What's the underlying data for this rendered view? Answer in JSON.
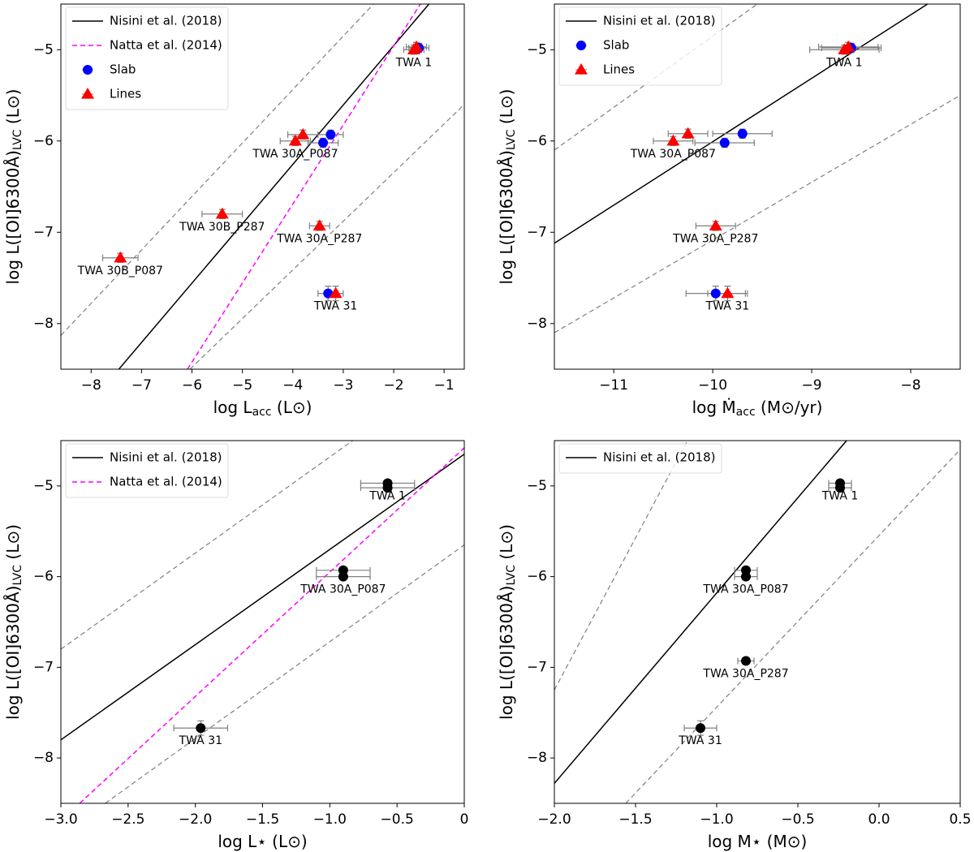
{
  "chart_data": [
    {
      "type": "scatter",
      "legend": "upper left",
      "x_label": [
        "log L",
        "acc",
        " (L⊙)"
      ],
      "y_label": [
        "log L([OI]6300Å)",
        "LVC",
        " (L⊙)"
      ],
      "xlim": [
        -8.6,
        -0.6
      ],
      "ylim": [
        -8.5,
        -4.5
      ],
      "xticks": [
        {
          "value": -8,
          "label": "−8"
        },
        {
          "value": -7,
          "label": "−7"
        },
        {
          "value": -6,
          "label": "−6"
        },
        {
          "value": -5,
          "label": "−5"
        },
        {
          "value": -4,
          "label": "−4"
        },
        {
          "value": -3,
          "label": "−3"
        },
        {
          "value": -2,
          "label": "−2"
        },
        {
          "value": -1,
          "label": "−1"
        }
      ],
      "yticks": [
        {
          "value": -8,
          "label": "−8"
        },
        {
          "value": -7,
          "label": "−7"
        },
        {
          "value": -6,
          "label": "−6"
        },
        {
          "value": -5,
          "label": "−5"
        }
      ],
      "lines": [
        {
          "name": "Nisini et al. (2018)",
          "color": "#000000",
          "dashed": false,
          "x": [
            -7.45,
            -1.3
          ],
          "y": [
            -8.5,
            -4.5
          ]
        },
        {
          "name": "Natta et al. (2014)",
          "color": "#ff00ff",
          "dashed": true,
          "x": [
            -6.09,
            -1.47
          ],
          "y": [
            -8.5,
            -4.5
          ]
        },
        {
          "color": "#808080",
          "dashed": true,
          "x": [
            -8.6,
            -2.4
          ],
          "y": [
            -8.13,
            -4.5
          ]
        },
        {
          "color": "#808080",
          "dashed": true,
          "x": [
            -6.04,
            -0.6
          ],
          "y": [
            -8.5,
            -5.6
          ]
        }
      ],
      "series": [
        {
          "name": "Slab",
          "color": "#0000ff",
          "marker": "circle",
          "x": [
            -1.5,
            -3.25,
            -3.4,
            -3.3
          ],
          "values": [
            -4.98,
            -5.93,
            -6.02,
            -7.67
          ],
          "xerr": [
            0.2,
            0.25,
            0.3,
            0.2
          ],
          "yerr": [
            0.05,
            0.05,
            0.05,
            0.08
          ],
          "labels": [
            null,
            null,
            null,
            null
          ]
        },
        {
          "name": "Lines",
          "color": "#ff0000",
          "marker": "triangle",
          "x": [
            -1.6,
            -1.55,
            -3.8,
            -3.95,
            -5.4,
            -3.47,
            -7.42,
            -3.15
          ],
          "values": [
            -5.0,
            -4.97,
            -5.93,
            -6.0,
            -6.8,
            -6.93,
            -7.28,
            -7.67
          ],
          "xerr": [
            0.2,
            0.2,
            0.3,
            0.3,
            0.4,
            0.2,
            0.35,
            0.15
          ],
          "yerr": [
            0.05,
            0.05,
            0.05,
            0.05,
            0.05,
            0.05,
            0.05,
            0.08
          ],
          "labels": [
            "TWA 1",
            null,
            null,
            "TWA 30A_P087",
            "TWA 30B_P287",
            "TWA 30A_P287",
            "TWA 30B_P087",
            "TWA 31"
          ]
        }
      ]
    },
    {
      "type": "scatter",
      "legend": "upper left",
      "x_label": [
        "log Ṁ",
        "acc",
        " (M⊙/yr)"
      ],
      "y_label": [
        "log L([OI]6300Å)",
        "LVC",
        " (L⊙)"
      ],
      "xlim": [
        -11.6,
        -7.5
      ],
      "ylim": [
        -8.5,
        -4.5
      ],
      "xticks": [
        {
          "value": -11,
          "label": "−11"
        },
        {
          "value": -10,
          "label": "−10"
        },
        {
          "value": -9,
          "label": "−9"
        },
        {
          "value": -8,
          "label": "−8"
        }
      ],
      "yticks": [
        {
          "value": -8,
          "label": "−8"
        },
        {
          "value": -7,
          "label": "−7"
        },
        {
          "value": -6,
          "label": "−6"
        },
        {
          "value": -5,
          "label": "−5"
        }
      ],
      "lines": [
        {
          "name": "Nisini et al. (2018)",
          "color": "#000000",
          "dashed": false,
          "x": [
            -11.6,
            -7.83
          ],
          "y": [
            -7.12,
            -4.5
          ]
        },
        {
          "color": "#808080",
          "dashed": true,
          "x": [
            -11.6,
            -9.55
          ],
          "y": [
            -6.1,
            -4.5
          ]
        },
        {
          "color": "#808080",
          "dashed": true,
          "x": [
            -11.6,
            -7.5
          ],
          "y": [
            -8.1,
            -5.5
          ]
        }
      ],
      "series": [
        {
          "name": "Slab",
          "color": "#0000ff",
          "marker": "circle",
          "x": [
            -8.6,
            -9.7,
            -9.88,
            -9.97
          ],
          "values": [
            -4.98,
            -5.92,
            -6.02,
            -7.67
          ],
          "xerr": [
            0.3,
            0.3,
            0.3,
            0.3
          ],
          "yerr": [
            0.05,
            0.05,
            0.05,
            0.08
          ],
          "labels": [
            null,
            null,
            null,
            null
          ]
        },
        {
          "name": "Lines",
          "color": "#ff0000",
          "marker": "triangle",
          "x": [
            -8.67,
            -8.63,
            -10.25,
            -10.4,
            -9.97,
            -9.85
          ],
          "values": [
            -5.0,
            -4.97,
            -5.92,
            -6.0,
            -6.93,
            -7.67
          ],
          "xerr": [
            0.35,
            0.3,
            0.2,
            0.2,
            0.2,
            0.2
          ],
          "yerr": [
            0.05,
            0.05,
            0.05,
            0.05,
            0.05,
            0.08
          ],
          "labels": [
            "TWA 1",
            null,
            null,
            "TWA 30A_P087",
            "TWA 30A_P287",
            "TWA 31"
          ]
        }
      ]
    },
    {
      "type": "scatter",
      "legend": "upper left",
      "x_label": [
        "log L⋆ (L⊙)"
      ],
      "y_label": [
        "log L([OI]6300Å)",
        "LVC",
        " (L⊙)"
      ],
      "xlim": [
        -3,
        0
      ],
      "ylim": [
        -8.5,
        -4.5
      ],
      "xticks": [
        {
          "value": -3,
          "label": "−3.0"
        },
        {
          "value": -2.5,
          "label": "−2.5"
        },
        {
          "value": -2,
          "label": "−2.0"
        },
        {
          "value": -1.5,
          "label": "−1.5"
        },
        {
          "value": -1,
          "label": "−1.0"
        },
        {
          "value": -0.5,
          "label": "−0.5"
        },
        0
      ],
      "yticks": [
        {
          "value": -8,
          "label": "−8"
        },
        {
          "value": -7,
          "label": "−7"
        },
        {
          "value": -6,
          "label": "−6"
        },
        {
          "value": -5,
          "label": "−5"
        }
      ],
      "lines": [
        {
          "name": "Nisini et al. (2018)",
          "color": "#000000",
          "dashed": false,
          "x": [
            -3,
            0
          ],
          "y": [
            -7.8,
            -4.65
          ]
        },
        {
          "name": "Natta et al. (2014)",
          "color": "#ff00ff",
          "dashed": true,
          "x": [
            -2.86,
            0
          ],
          "y": [
            -8.5,
            -4.58
          ]
        },
        {
          "color": "#808080",
          "dashed": true,
          "x": [
            -3,
            -0.83
          ],
          "y": [
            -6.8,
            -4.5
          ]
        },
        {
          "color": "#808080",
          "dashed": true,
          "x": [
            -2.67,
            0
          ],
          "y": [
            -8.5,
            -5.65
          ]
        }
      ],
      "series": [
        {
          "color": "#000000",
          "marker": "circle",
          "x": [
            -0.57,
            -0.57,
            -0.9,
            -0.9,
            -1.96
          ],
          "values": [
            -4.97,
            -5.02,
            -5.93,
            -6.0,
            -7.67
          ],
          "xerr": [
            0.2,
            0.2,
            0.2,
            0.2,
            0.2
          ],
          "yerr": [
            0,
            0,
            0,
            0,
            0.08
          ],
          "labels": [
            "TWA 1",
            null,
            null,
            "TWA 30A_P087",
            "TWA 31"
          ]
        }
      ]
    },
    {
      "type": "scatter",
      "legend": "upper left",
      "x_label": [
        "log M⋆ (M⊙)"
      ],
      "y_label": [
        "log L([OI]6300Å)",
        "LVC",
        " (L⊙)"
      ],
      "xlim": [
        -2,
        0.5
      ],
      "ylim": [
        -8.5,
        -4.5
      ],
      "xticks": [
        {
          "value": -2,
          "label": "−2.0"
        },
        {
          "value": -1.5,
          "label": "−1.5"
        },
        {
          "value": -1,
          "label": "−1.0"
        },
        {
          "value": -0.5,
          "label": "−0.5"
        },
        {
          "value": 0,
          "label": "0.0"
        },
        0.5
      ],
      "yticks": [
        {
          "value": -8,
          "label": "−8"
        },
        {
          "value": -7,
          "label": "−7"
        },
        {
          "value": -6,
          "label": "−6"
        },
        {
          "value": -5,
          "label": "−5"
        }
      ],
      "lines": [
        {
          "name": "Nisini et al. (2018)",
          "color": "#000000",
          "dashed": false,
          "x": [
            -2,
            -0.2
          ],
          "y": [
            -8.28,
            -4.5
          ]
        },
        {
          "color": "#808080",
          "dashed": true,
          "x": [
            -2,
            -1.18
          ],
          "y": [
            -7.25,
            -4.5
          ]
        },
        {
          "color": "#808080",
          "dashed": true,
          "x": [
            -1.56,
            0.5
          ],
          "y": [
            -8.5,
            -4.6
          ]
        }
      ],
      "series": [
        {
          "color": "#000000",
          "marker": "circle",
          "x": [
            -0.24,
            -0.24,
            -0.82,
            -0.82,
            -0.82,
            -1.1
          ],
          "values": [
            -4.97,
            -5.02,
            -5.93,
            -6.0,
            -6.93,
            -7.67
          ],
          "xerr": [
            0.07,
            0.07,
            0.07,
            0.07,
            0.05,
            0.1
          ],
          "yerr": [
            0,
            0,
            0,
            0,
            0,
            0.08
          ],
          "labels": [
            "TWA 1",
            null,
            null,
            "TWA 30A_P087",
            "TWA 30A_P287",
            "TWA 31"
          ]
        }
      ]
    }
  ]
}
